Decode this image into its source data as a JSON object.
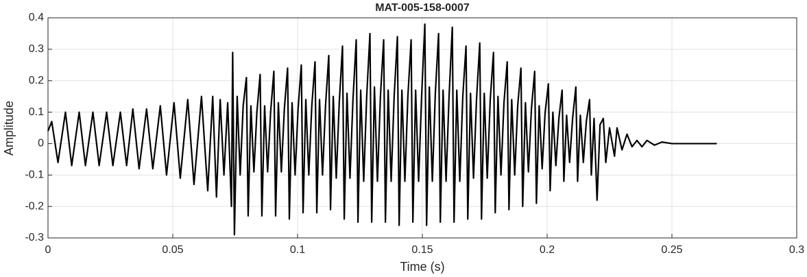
{
  "chart_data": {
    "type": "line",
    "title": "MAT-005-158-0007",
    "xlabel": "Time (s)",
    "ylabel": "Amplitude",
    "xlim": [
      0,
      0.3
    ],
    "xticks": [
      0,
      0.05,
      0.1,
      0.15,
      0.2,
      0.25,
      0.3
    ],
    "ylim": [
      -0.3,
      0.4
    ],
    "yticks": [
      -0.3,
      -0.2,
      -0.1,
      0,
      0.1,
      0.2,
      0.3,
      0.4
    ],
    "grid": true,
    "color": "#000000",
    "x": [
      0,
      0.0015,
      0.004,
      0.007,
      0.0095,
      0.0125,
      0.015,
      0.018,
      0.0205,
      0.0235,
      0.026,
      0.029,
      0.0315,
      0.034,
      0.0365,
      0.0395,
      0.042,
      0.045,
      0.0475,
      0.0505,
      0.053,
      0.056,
      0.0585,
      0.0615,
      0.064,
      0.066,
      0.0675,
      0.069,
      0.0705,
      0.072,
      0.0735,
      0.074,
      0.0747,
      0.0758,
      0.077,
      0.0782,
      0.0795,
      0.0802,
      0.0813,
      0.0825,
      0.0837,
      0.085,
      0.0857,
      0.0868,
      0.088,
      0.0892,
      0.0905,
      0.0912,
      0.0923,
      0.0935,
      0.0947,
      0.096,
      0.0967,
      0.0978,
      0.099,
      0.1002,
      0.1015,
      0.1022,
      0.1033,
      0.1045,
      0.1057,
      0.107,
      0.1077,
      0.1088,
      0.11,
      0.1112,
      0.1125,
      0.1132,
      0.1143,
      0.1155,
      0.1167,
      0.118,
      0.1187,
      0.1198,
      0.121,
      0.1222,
      0.1235,
      0.1242,
      0.1253,
      0.1265,
      0.1277,
      0.129,
      0.1297,
      0.1308,
      0.132,
      0.1332,
      0.1345,
      0.1352,
      0.1363,
      0.1375,
      0.1387,
      0.14,
      0.1407,
      0.1418,
      0.143,
      0.1442,
      0.1455,
      0.1462,
      0.1473,
      0.1485,
      0.1497,
      0.151,
      0.1517,
      0.1528,
      0.154,
      0.1552,
      0.1565,
      0.1572,
      0.1583,
      0.1595,
      0.1607,
      0.162,
      0.1627,
      0.1638,
      0.165,
      0.1662,
      0.1675,
      0.1682,
      0.1693,
      0.1705,
      0.1717,
      0.173,
      0.1737,
      0.1748,
      0.176,
      0.1772,
      0.1785,
      0.1792,
      0.1803,
      0.1815,
      0.1827,
      0.184,
      0.1847,
      0.1858,
      0.187,
      0.1882,
      0.1895,
      0.1902,
      0.1913,
      0.1925,
      0.1937,
      0.195,
      0.1957,
      0.1968,
      0.198,
      0.1992,
      0.2005,
      0.2012,
      0.2023,
      0.2035,
      0.2047,
      0.206,
      0.2067,
      0.2078,
      0.209,
      0.2102,
      0.2115,
      0.2122,
      0.2133,
      0.2145,
      0.2157,
      0.217,
      0.2177,
      0.2188,
      0.22,
      0.2212,
      0.2225,
      0.2235,
      0.225,
      0.227,
      0.228,
      0.23,
      0.232,
      0.234,
      0.236,
      0.238,
      0.24,
      0.243,
      0.246,
      0.25,
      0.268
    ],
    "y": [
      0.04,
      0.07,
      -0.06,
      0.1,
      -0.07,
      0.1,
      -0.07,
      0.1,
      -0.07,
      0.1,
      -0.07,
      0.1,
      -0.07,
      0.11,
      -0.08,
      0.11,
      -0.08,
      0.12,
      -0.1,
      0.13,
      -0.11,
      0.14,
      -0.13,
      0.15,
      -0.15,
      0.15,
      -0.17,
      0.14,
      -0.1,
      0.13,
      -0.2,
      0.29,
      -0.29,
      0.15,
      -0.1,
      0.12,
      0.21,
      -0.23,
      0.12,
      -0.09,
      0.1,
      0.22,
      -0.23,
      0.12,
      -0.09,
      0.1,
      0.23,
      -0.23,
      0.13,
      -0.09,
      0.11,
      0.24,
      -0.24,
      0.13,
      -0.1,
      0.11,
      0.25,
      -0.22,
      0.14,
      -0.1,
      0.12,
      0.26,
      -0.22,
      0.14,
      -0.1,
      0.12,
      0.28,
      -0.21,
      0.15,
      -0.11,
      0.13,
      0.31,
      -0.24,
      0.16,
      -0.11,
      0.14,
      0.33,
      -0.25,
      0.17,
      -0.12,
      0.15,
      0.35,
      -0.25,
      0.18,
      -0.12,
      0.15,
      0.33,
      -0.25,
      0.17,
      -0.12,
      0.15,
      0.34,
      -0.26,
      0.17,
      -0.12,
      0.15,
      0.33,
      -0.25,
      0.17,
      -0.12,
      0.15,
      0.38,
      -0.26,
      0.18,
      -0.12,
      0.16,
      0.35,
      -0.25,
      0.17,
      -0.12,
      0.15,
      0.37,
      -0.25,
      0.17,
      -0.12,
      0.15,
      0.31,
      -0.24,
      0.16,
      -0.11,
      0.14,
      0.32,
      -0.24,
      0.16,
      -0.11,
      0.14,
      0.29,
      -0.22,
      0.15,
      -0.1,
      0.13,
      0.26,
      -0.21,
      0.14,
      -0.1,
      0.12,
      0.24,
      -0.2,
      0.13,
      -0.09,
      0.11,
      0.23,
      -0.19,
      0.12,
      -0.08,
      0.1,
      0.19,
      -0.15,
      0.1,
      -0.07,
      0.08,
      0.17,
      -0.12,
      0.09,
      -0.06,
      0.08,
      0.18,
      -0.12,
      0.09,
      -0.06,
      0.07,
      0.14,
      -0.1,
      0.08,
      -0.18,
      0.06,
      0.08,
      -0.06,
      0.05,
      -0.04,
      0.05,
      -0.02,
      0.03,
      -0.01,
      0.01,
      -0.01,
      0.01,
      -0.005,
      0.005,
      0,
      0
    ]
  }
}
